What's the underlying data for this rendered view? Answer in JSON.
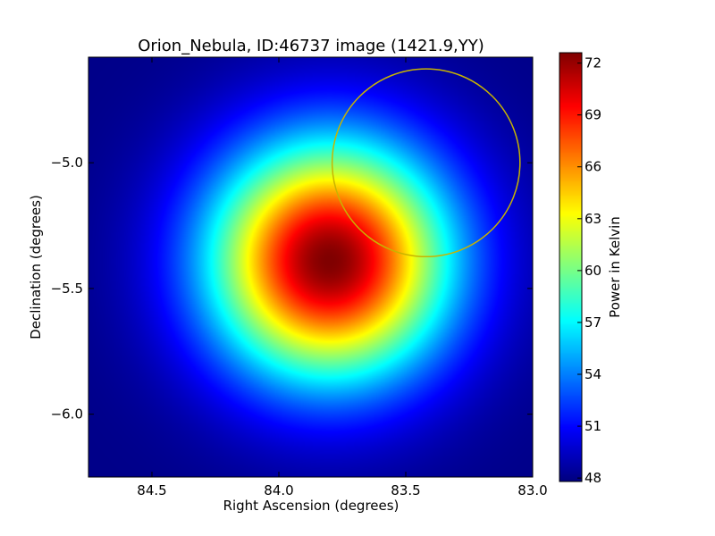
{
  "chart_data": {
    "type": "heatmap",
    "title": "Orion_Nebula, ID:46737 image (1421.9,YY)",
    "xlabel": "Right Ascension (degrees)",
    "ylabel": "Declination (degrees)",
    "xlim": [
      84.75,
      83.0
    ],
    "ylim": [
      -6.25,
      -4.58
    ],
    "x_ticks": [
      84.5,
      84.0,
      83.5,
      83.0
    ],
    "x_tick_labels": [
      "84.5",
      "84.0",
      "83.5",
      "83.0"
    ],
    "y_ticks": [
      -5.0,
      -5.5,
      -6.0
    ],
    "y_tick_labels": [
      "−5.0",
      "−5.5",
      "−6.0"
    ],
    "colormap": "jet",
    "peak": {
      "ra": 83.8,
      "dec": -5.39,
      "value": 72.6
    },
    "base_value": 48.0,
    "beam_sigma_deg": 0.33,
    "circle": {
      "ra": 83.42,
      "dec": -5.0,
      "radius_deg": 0.37,
      "color": "#c8b400"
    },
    "colorbar": {
      "label": "Power in Kelvin",
      "vmin": 47.8,
      "vmax": 72.6,
      "ticks": [
        48,
        51,
        54,
        57,
        60,
        63,
        66,
        69,
        72
      ],
      "tick_labels": [
        "48",
        "51",
        "54",
        "57",
        "60",
        "63",
        "66",
        "69",
        "72"
      ]
    },
    "grid": false
  }
}
